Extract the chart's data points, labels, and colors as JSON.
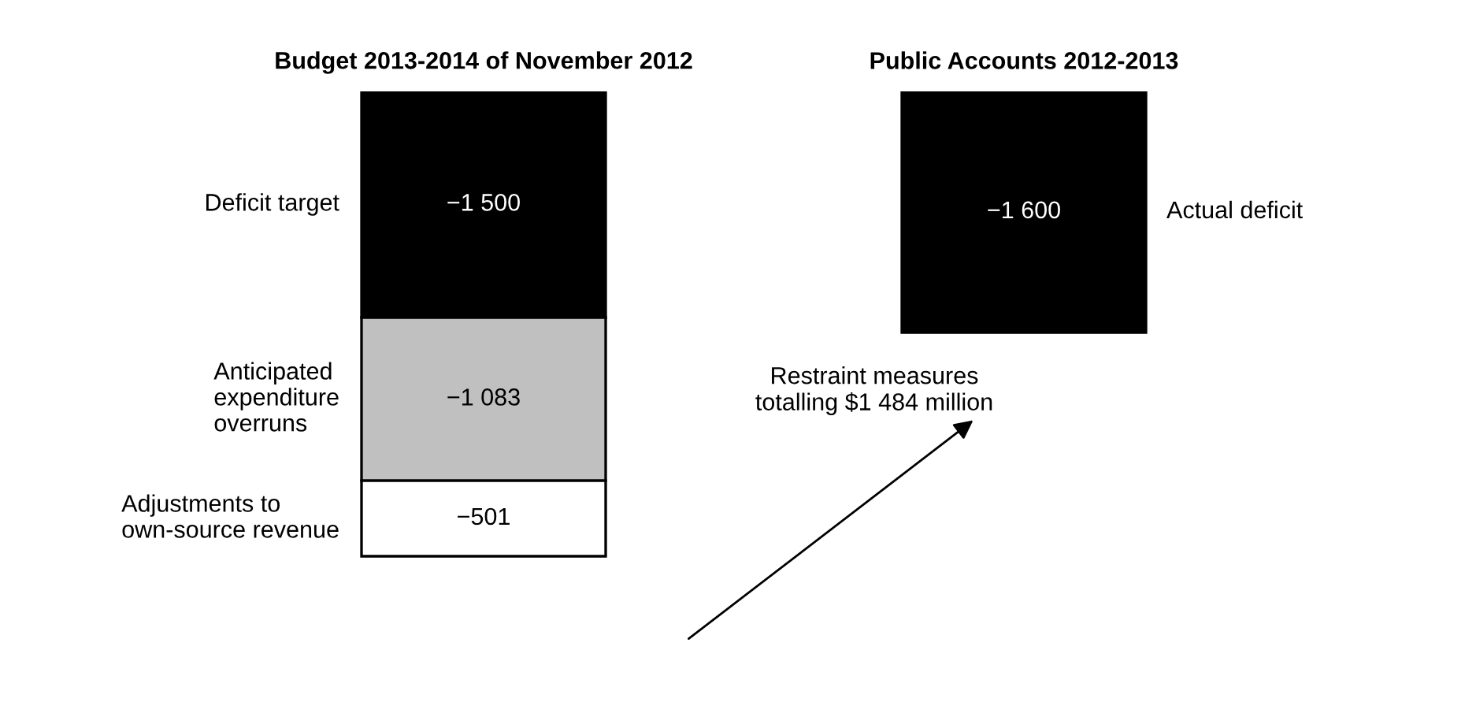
{
  "chart_data": {
    "type": "bar",
    "stacked": true,
    "categories": [
      "Budget 2013-2014 of November 2012",
      "Public Accounts 2012-2013"
    ],
    "series": [
      {
        "name": "Deficit target",
        "color": "#000000",
        "values": [
          -1500,
          null
        ],
        "value_labels": [
          "−1 500",
          null
        ]
      },
      {
        "name": "Anticipated\nexpenditure\noverruns",
        "color": "#c0c0c0",
        "values": [
          -1083,
          null
        ],
        "value_labels": [
          "−1 083",
          null
        ]
      },
      {
        "name": "Adjustments to\nown-source revenue",
        "color": "#ffffff",
        "values": [
          -501,
          null
        ],
        "value_labels": [
          "−501",
          null
        ]
      },
      {
        "name": "Actual deficit",
        "color": "#000000",
        "values": [
          null,
          -1600
        ],
        "value_labels": [
          null,
          "−1 600"
        ]
      }
    ],
    "annotations": [
      "Restraint measures\ntotalling $1 484 million"
    ],
    "grid": false
  }
}
